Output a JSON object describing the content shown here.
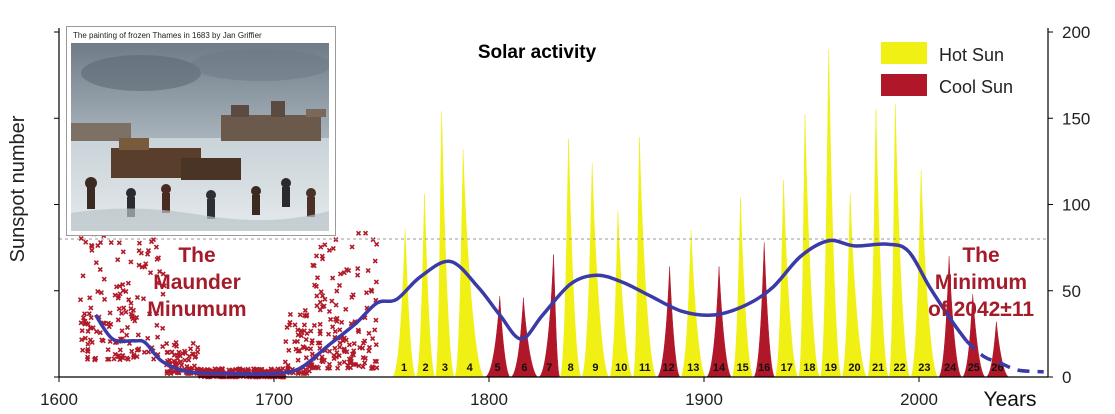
{
  "chart_data": {
    "type": "area",
    "title": "Solar activity",
    "ylabel": "Sunspot number",
    "xlabel": "Years",
    "xlim": [
      1600,
      2060
    ],
    "ylim": [
      0,
      200
    ],
    "x_ticks": [
      1600,
      1700,
      1800,
      1900,
      2000
    ],
    "y_ticks": [
      0,
      50,
      100,
      150,
      200
    ],
    "reference_line": 80,
    "legend": {
      "position": "top-right",
      "entries": [
        {
          "label": "Hot Sun",
          "color": "#f0f014"
        },
        {
          "label": "Cool Sun",
          "color": "#b0182a"
        }
      ]
    },
    "annotations": {
      "maunder": [
        "The",
        "Maunder",
        "Minumum"
      ],
      "minimum": [
        "The",
        "Minimum",
        "of 2042±11"
      ]
    },
    "photo_caption": "The painting of frozen Thames in 1683 by Jan Griffier",
    "cycles": [
      {
        "label": "1",
        "start": 1755,
        "peak_year": 1761,
        "end": 1766,
        "peak": 86,
        "kind": "hot"
      },
      {
        "label": "2",
        "start": 1766,
        "peak_year": 1770,
        "end": 1775,
        "peak": 106,
        "kind": "hot"
      },
      {
        "label": "3",
        "start": 1775,
        "peak_year": 1778,
        "end": 1784,
        "peak": 154,
        "kind": "hot"
      },
      {
        "label": "4",
        "start": 1784,
        "peak_year": 1788,
        "end": 1798,
        "peak": 132,
        "kind": "hot"
      },
      {
        "label": "5",
        "start": 1798,
        "peak_year": 1805,
        "end": 1810,
        "peak": 47,
        "kind": "cool"
      },
      {
        "label": "6",
        "start": 1810,
        "peak_year": 1816,
        "end": 1823,
        "peak": 46,
        "kind": "cool"
      },
      {
        "label": "7",
        "start": 1823,
        "peak_year": 1830,
        "end": 1833,
        "peak": 71,
        "kind": "cool"
      },
      {
        "label": "8",
        "start": 1833,
        "peak_year": 1837,
        "end": 1843,
        "peak": 138,
        "kind": "hot"
      },
      {
        "label": "9",
        "start": 1843,
        "peak_year": 1848,
        "end": 1856,
        "peak": 124,
        "kind": "hot"
      },
      {
        "label": "10",
        "start": 1856,
        "peak_year": 1860,
        "end": 1867,
        "peak": 96,
        "kind": "hot"
      },
      {
        "label": "11",
        "start": 1867,
        "peak_year": 1870,
        "end": 1878,
        "peak": 139,
        "kind": "hot"
      },
      {
        "label": "12",
        "start": 1878,
        "peak_year": 1884,
        "end": 1889,
        "peak": 64,
        "kind": "cool"
      },
      {
        "label": "13",
        "start": 1889,
        "peak_year": 1894,
        "end": 1901,
        "peak": 85,
        "kind": "hot"
      },
      {
        "label": "14",
        "start": 1901,
        "peak_year": 1907,
        "end": 1913,
        "peak": 64,
        "kind": "cool"
      },
      {
        "label": "15",
        "start": 1913,
        "peak_year": 1917,
        "end": 1923,
        "peak": 104,
        "kind": "hot"
      },
      {
        "label": "16",
        "start": 1923,
        "peak_year": 1928,
        "end": 1933,
        "peak": 78,
        "kind": "cool"
      },
      {
        "label": "17",
        "start": 1933,
        "peak_year": 1937,
        "end": 1944,
        "peak": 114,
        "kind": "hot"
      },
      {
        "label": "18",
        "start": 1944,
        "peak_year": 1947,
        "end": 1954,
        "peak": 152,
        "kind": "hot"
      },
      {
        "label": "19",
        "start": 1954,
        "peak_year": 1958,
        "end": 1964,
        "peak": 190,
        "kind": "hot"
      },
      {
        "label": "20",
        "start": 1964,
        "peak_year": 1968,
        "end": 1976,
        "peak": 106,
        "kind": "hot"
      },
      {
        "label": "21",
        "start": 1976,
        "peak_year": 1980,
        "end": 1986,
        "peak": 155,
        "kind": "hot"
      },
      {
        "label": "22",
        "start": 1986,
        "peak_year": 1989,
        "end": 1996,
        "peak": 158,
        "kind": "hot"
      },
      {
        "label": "23",
        "start": 1996,
        "peak_year": 2001,
        "end": 2009,
        "peak": 120,
        "kind": "hot"
      },
      {
        "label": "24",
        "start": 2009,
        "peak_year": 2014,
        "end": 2020,
        "peak": 70,
        "kind": "cool"
      },
      {
        "label": "25",
        "start": 2020,
        "peak_year": 2025,
        "end": 2031,
        "peak": 48,
        "kind": "cool"
      },
      {
        "label": "26",
        "start": 2031,
        "peak_year": 2036,
        "end": 2042,
        "peak": 32,
        "kind": "cool"
      }
    ],
    "trend_line": {
      "color": "#3a3aa8",
      "points": [
        [
          1617,
          36
        ],
        [
          1625,
          22
        ],
        [
          1635,
          21
        ],
        [
          1640,
          20
        ],
        [
          1648,
          9
        ],
        [
          1660,
          3
        ],
        [
          1680,
          2
        ],
        [
          1700,
          2
        ],
        [
          1712,
          5
        ],
        [
          1725,
          18
        ],
        [
          1738,
          31
        ],
        [
          1748,
          43
        ],
        [
          1757,
          45
        ],
        [
          1768,
          58
        ],
        [
          1782,
          67
        ],
        [
          1795,
          52
        ],
        [
          1805,
          36
        ],
        [
          1815,
          22
        ],
        [
          1825,
          36
        ],
        [
          1838,
          54
        ],
        [
          1850,
          59
        ],
        [
          1862,
          55
        ],
        [
          1875,
          47
        ],
        [
          1890,
          38
        ],
        [
          1905,
          36
        ],
        [
          1920,
          42
        ],
        [
          1932,
          52
        ],
        [
          1945,
          70
        ],
        [
          1958,
          79
        ],
        [
          1970,
          76
        ],
        [
          1985,
          77
        ],
        [
          1995,
          73
        ],
        [
          2005,
          52
        ],
        [
          2015,
          33
        ],
        [
          2022,
          21
        ]
      ],
      "forecast": [
        [
          2022,
          21
        ],
        [
          2030,
          12
        ],
        [
          2038,
          8
        ],
        [
          2046,
          4
        ],
        [
          2058,
          3
        ]
      ]
    },
    "maunder_scatter": {
      "color": "#b01a28",
      "ranges": [
        [
          1610,
          1650,
          10,
          120
        ],
        [
          1650,
          1665,
          2,
          20
        ],
        [
          1665,
          1705,
          0,
          5
        ],
        [
          1705,
          1718,
          2,
          40
        ],
        [
          1718,
          1748,
          5,
          85
        ]
      ]
    }
  }
}
